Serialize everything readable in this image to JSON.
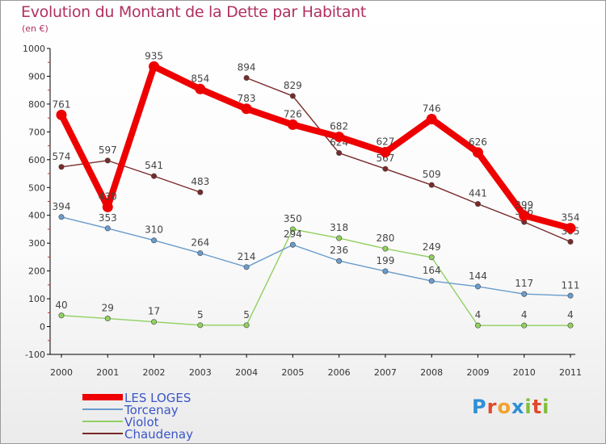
{
  "title": "Evolution du Montant de la Dette par Habitant",
  "subtitle": "(en €)",
  "brand": {
    "text": "Proxiti",
    "letters": [
      "P",
      "r",
      "o",
      "x",
      "i",
      "t",
      "i"
    ],
    "colors": [
      "#2e8fd6",
      "#e04a2a",
      "#f2a12b",
      "#2e8fd6",
      "#7fbf3a",
      "#e04a2a",
      "#7fbf3a"
    ]
  },
  "chart_data": {
    "type": "line",
    "x": [
      "2000",
      "2001",
      "2002",
      "2003",
      "2004",
      "2005",
      "2006",
      "2007",
      "2008",
      "2009",
      "2010",
      "2011"
    ],
    "ylim": [
      -100,
      1000
    ],
    "yticks": [
      "-100",
      "0",
      "100",
      "200",
      "300",
      "400",
      "500",
      "600",
      "700",
      "800",
      "900",
      "1000"
    ],
    "grid": false,
    "legend_position": "bottom-left",
    "series": [
      {
        "name": "Chaudenay",
        "color": "#7a2a2a",
        "values": [
          574,
          597,
          541,
          483,
          894,
          829,
          624,
          567,
          509,
          441,
          376,
          305
        ],
        "labels": [
          "574",
          "597",
          "541",
          "483",
          "894",
          "829",
          "624",
          "567",
          "509",
          "441",
          "376",
          "305"
        ],
        "segments": [
          [
            0,
            3
          ],
          [
            4,
            11
          ]
        ]
      },
      {
        "name": "Violot",
        "color": "#90d060",
        "values": [
          40,
          29,
          17,
          5,
          5,
          350,
          318,
          280,
          249,
          4,
          4,
          4
        ],
        "labels": [
          "40",
          "29",
          "17",
          "5",
          "5",
          "350",
          "318",
          "280",
          "249",
          "4",
          "4",
          "4"
        ],
        "segments": [
          [
            0,
            11
          ]
        ]
      },
      {
        "name": "Torcenay",
        "color": "#6a9ccc",
        "values": [
          394,
          353,
          310,
          264,
          214,
          294,
          236,
          199,
          164,
          144,
          117,
          111
        ],
        "labels": [
          "394",
          "353",
          "310",
          "264",
          "214",
          "294",
          "236",
          "199",
          "164",
          "144",
          "117",
          "111"
        ],
        "segments": [
          [
            0,
            11
          ]
        ]
      },
      {
        "name": "LES LOGES",
        "color": "#ee0000",
        "values": [
          761,
          430,
          935,
          854,
          783,
          726,
          682,
          627,
          746,
          626,
          399,
          354
        ],
        "labels": [
          "761",
          "430",
          "935",
          "854",
          "783",
          "726",
          "682",
          "627",
          "746",
          "626",
          "399",
          "354"
        ],
        "segments": [
          [
            0,
            11
          ]
        ]
      }
    ]
  }
}
